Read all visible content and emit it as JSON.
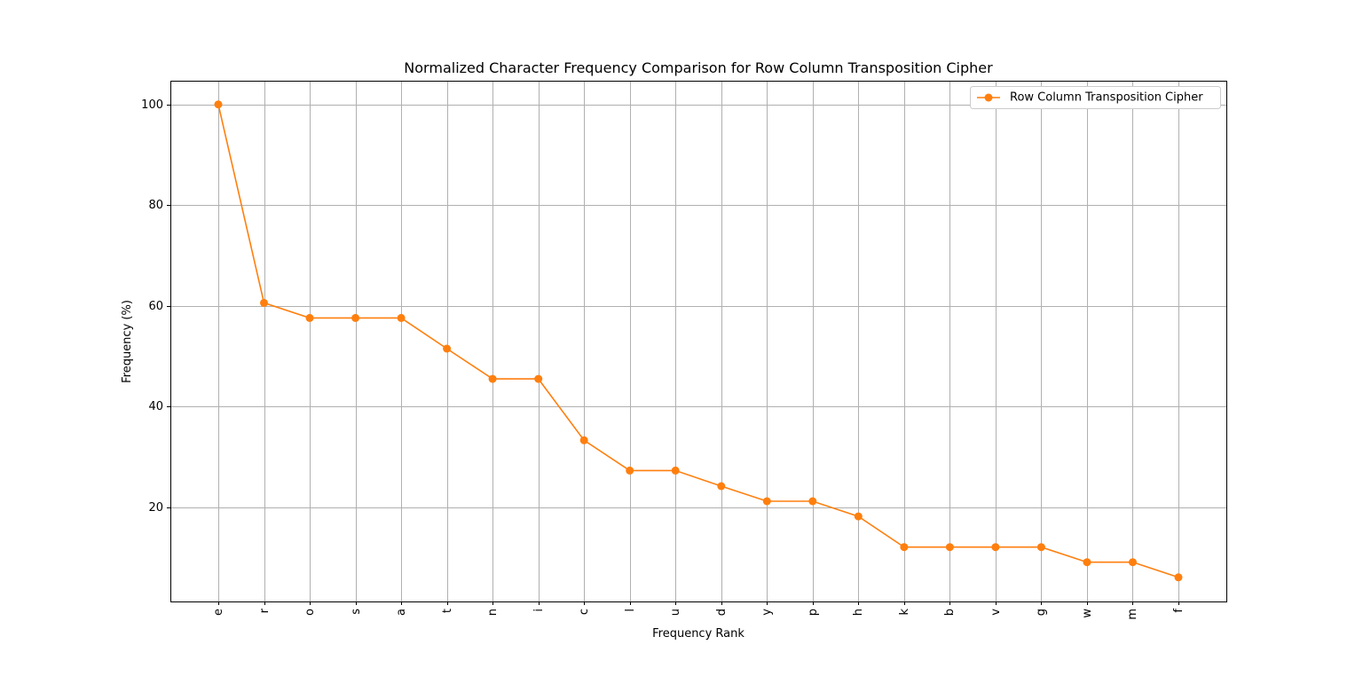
{
  "chart_data": {
    "type": "line",
    "title": "Normalized Character Frequency Comparison for Row Column Transposition Cipher",
    "xlabel": "Frequency Rank",
    "ylabel": "Frequency (%)",
    "categories": [
      "e",
      "r",
      "o",
      "s",
      "a",
      "t",
      "n",
      "i",
      "c",
      "l",
      "u",
      "d",
      "y",
      "p",
      "h",
      "k",
      "b",
      "v",
      "g",
      "w",
      "m",
      "f"
    ],
    "ylim": [
      1.3,
      104.7
    ],
    "yticks": [
      20,
      40,
      60,
      80,
      100
    ],
    "grid": true,
    "legend_position": "top-right",
    "series": [
      {
        "name": "Row Column Transposition Cipher",
        "color": "#ff7f0e",
        "marker": "circle",
        "values": [
          100,
          60.6,
          57.6,
          57.6,
          57.6,
          51.5,
          45.5,
          45.5,
          33.3,
          27.3,
          27.3,
          24.2,
          21.2,
          21.2,
          18.2,
          12.1,
          12.1,
          12.1,
          12.1,
          9.1,
          9.1,
          6.1
        ]
      }
    ]
  }
}
